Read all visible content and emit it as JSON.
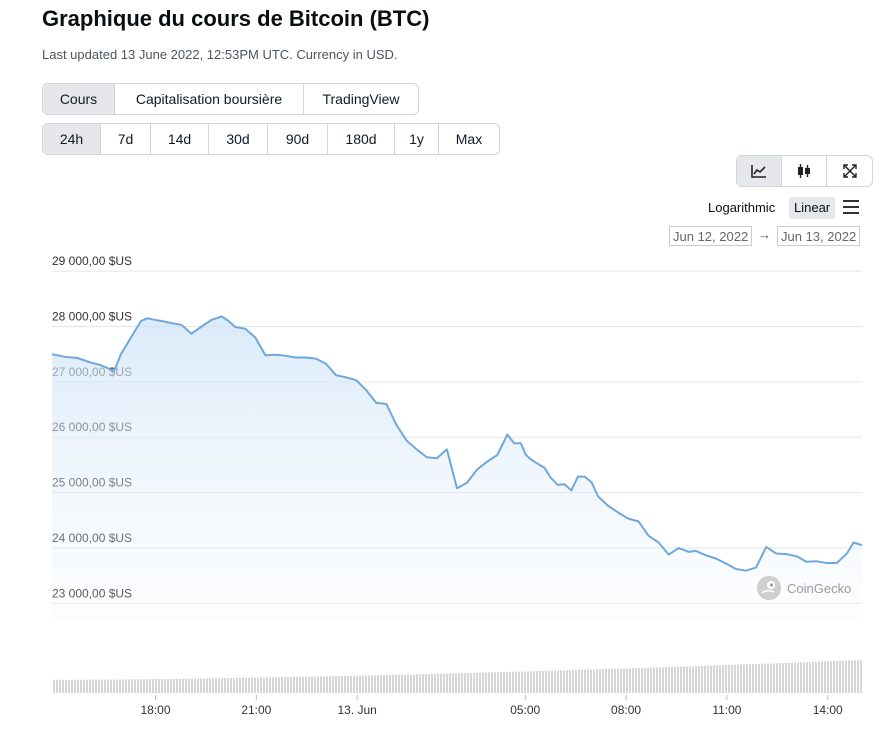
{
  "header": {
    "title": "Graphique du cours de Bitcoin (BTC)",
    "subtitle": "Last updated 13 June 2022, 12:53PM UTC. Currency in USD."
  },
  "tabs": [
    {
      "label": "Cours",
      "active": true
    },
    {
      "label": "Capitalisation boursière",
      "active": false
    },
    {
      "label": "TradingView",
      "active": false
    }
  ],
  "ranges": [
    {
      "label": "24h",
      "active": true
    },
    {
      "label": "7d",
      "active": false
    },
    {
      "label": "14d",
      "active": false
    },
    {
      "label": "30d",
      "active": false
    },
    {
      "label": "90d",
      "active": false
    },
    {
      "label": "180d",
      "active": false
    },
    {
      "label": "1y",
      "active": false
    },
    {
      "label": "Max",
      "active": false
    }
  ],
  "tools": [
    {
      "icon": "line-chart-icon",
      "active": true
    },
    {
      "icon": "candlestick-icon",
      "active": false
    },
    {
      "icon": "fullscreen-icon",
      "active": false
    }
  ],
  "scale": {
    "log_label": "Logarithmic",
    "linear_label": "Linear",
    "selected": "Linear"
  },
  "date_range": {
    "from": "Jun 12, 2022",
    "arrow": "→",
    "to": "Jun 13, 2022"
  },
  "watermark": "CoinGecko",
  "chart_data": {
    "type": "area",
    "ylim": [
      22700,
      29200
    ],
    "yticks": [
      {
        "value": 23000,
        "label": "23 000,00 $US"
      },
      {
        "value": 24000,
        "label": "24 000,00 $US"
      },
      {
        "value": 25000,
        "label": "25 000,00 $US"
      },
      {
        "value": 26000,
        "label": "26 000,00 $US"
      },
      {
        "value": 27000,
        "label": "27 000,00 $US"
      },
      {
        "value": 28000,
        "label": "28 000,00 $US"
      },
      {
        "value": 29000,
        "label": "29 000,00 $US"
      }
    ],
    "xticks": [
      {
        "hours": 2.83,
        "label": "18:00"
      },
      {
        "hours": 5.83,
        "label": "21:00"
      },
      {
        "hours": 8.83,
        "label": "13. Jun"
      },
      {
        "hours": 13.83,
        "label": "05:00"
      },
      {
        "hours": 16.83,
        "label": "08:00"
      },
      {
        "hours": 19.83,
        "label": "11:00"
      },
      {
        "hours": 22.83,
        "label": "14:00"
      }
    ],
    "xlim": [
      -0.25,
      23.85
    ],
    "grid": true,
    "series": [
      {
        "x": [
          -0.25,
          0.15,
          0.5,
          0.9,
          1.2,
          1.4,
          1.6,
          1.8,
          2.0,
          2.2,
          2.4,
          2.6,
          2.8,
          3.0,
          3.3,
          3.6,
          3.9,
          4.2,
          4.5,
          4.8,
          5.0,
          5.2,
          5.5,
          5.8,
          6.1,
          6.4,
          6.7,
          7.0,
          7.3,
          7.6,
          7.9,
          8.2,
          8.5,
          8.8,
          9.1,
          9.4,
          9.7,
          10.0,
          10.3,
          10.6,
          10.9,
          11.2,
          11.5,
          11.8,
          12.1,
          12.4,
          12.7,
          13.0,
          13.3,
          13.5,
          13.7,
          13.85,
          14.0,
          14.2,
          14.4,
          14.6,
          14.8,
          15.0,
          15.2,
          15.4,
          15.6,
          15.8,
          16.0,
          16.3,
          16.6,
          16.9,
          17.2,
          17.5,
          17.8,
          18.1,
          18.4,
          18.7,
          18.9,
          19.2,
          19.5,
          19.8,
          20.1,
          20.4,
          20.7,
          21.0,
          21.3,
          21.6,
          21.9,
          22.2,
          22.5,
          22.8,
          23.1,
          23.4,
          23.6,
          23.85
        ],
        "y": [
          27500,
          27450,
          27430,
          27350,
          27300,
          27250,
          27200,
          27500,
          27700,
          27900,
          28100,
          28150,
          28120,
          28100,
          28060,
          28030,
          27870,
          28000,
          28120,
          28180,
          28100,
          27990,
          27960,
          27800,
          27480,
          27490,
          27470,
          27440,
          27440,
          27420,
          27330,
          27120,
          27080,
          27030,
          26850,
          26620,
          26600,
          26220,
          25940,
          25780,
          25640,
          25620,
          25780,
          25080,
          25180,
          25420,
          25560,
          25680,
          26050,
          25890,
          25890,
          25680,
          25600,
          25520,
          25450,
          25260,
          25140,
          25150,
          25040,
          25290,
          25290,
          25190,
          24930,
          24760,
          24640,
          24530,
          24480,
          24220,
          24100,
          23880,
          24000,
          23930,
          23950,
          23870,
          23810,
          23720,
          23620,
          23590,
          23650,
          24020,
          23900,
          23890,
          23850,
          23750,
          23760,
          23730,
          23730,
          23900,
          24100,
          24050
        ]
      }
    ],
    "volume_trend": [
      0.22,
      0.55
    ]
  }
}
